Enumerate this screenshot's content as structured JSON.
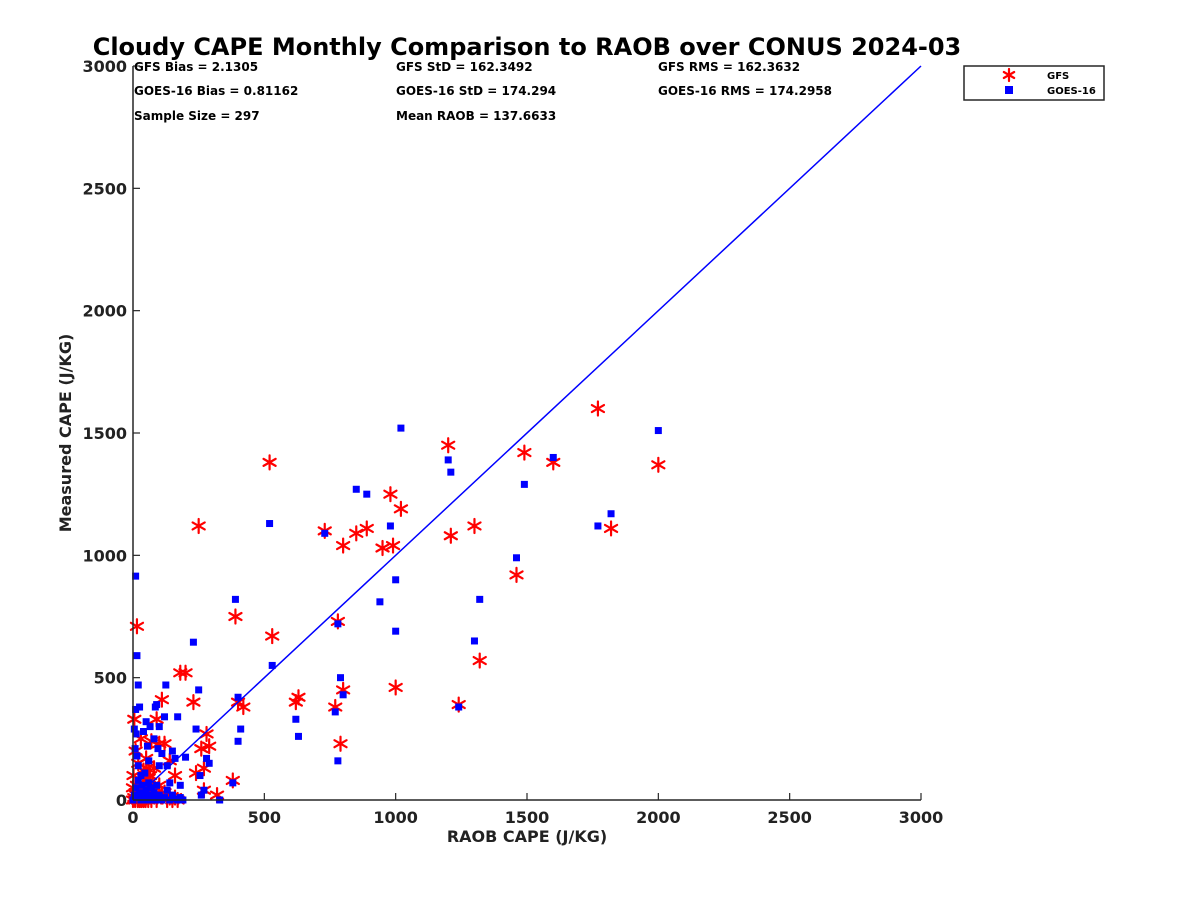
{
  "chart_data": {
    "type": "scatter",
    "title": "Cloudy CAPE Monthly Comparison to RAOB over CONUS 2024-03",
    "xlabel": "RAOB CAPE (J/KG)",
    "ylabel": "Measured CAPE (J/KG)",
    "xlim": [
      0,
      3000
    ],
    "ylim": [
      0,
      3000
    ],
    "xticks": [
      "0",
      "500",
      "1000",
      "1500",
      "2000",
      "2500",
      "3000"
    ],
    "yticks": [
      "0",
      "500",
      "1000",
      "1500",
      "2000",
      "2500",
      "3000"
    ],
    "grid": false,
    "legend_position": "top-right, outside plot",
    "stats": [
      "GFS Bias = 2.1305",
      "GFS StD = 162.3492",
      "GFS RMS = 162.3632",
      "GOES-16 Bias = 0.81162",
      "GOES-16 StD = 174.294",
      "GOES-16 RMS = 174.2958",
      "Sample Size = 297",
      "Mean RAOB = 137.6633"
    ],
    "reference_line": {
      "x": [
        0,
        3000
      ],
      "y": [
        0,
        3000
      ],
      "color": "#0000ff"
    },
    "series": [
      {
        "name": "GFS",
        "marker": "asterisk",
        "color": "#ff0000",
        "points": [
          [
            15,
            710
          ],
          [
            5,
            330
          ],
          [
            10,
            200
          ],
          [
            20,
            150
          ],
          [
            30,
            250
          ],
          [
            40,
            120
          ],
          [
            50,
            170
          ],
          [
            60,
            90
          ],
          [
            70,
            240
          ],
          [
            80,
            130
          ],
          [
            90,
            330
          ],
          [
            100,
            230
          ],
          [
            110,
            410
          ],
          [
            120,
            230
          ],
          [
            140,
            160
          ],
          [
            160,
            100
          ],
          [
            180,
            520
          ],
          [
            200,
            520
          ],
          [
            230,
            400
          ],
          [
            240,
            110
          ],
          [
            250,
            1120
          ],
          [
            260,
            210
          ],
          [
            270,
            130
          ],
          [
            280,
            270
          ],
          [
            290,
            220
          ],
          [
            270,
            40
          ],
          [
            320,
            20
          ],
          [
            380,
            80
          ],
          [
            390,
            750
          ],
          [
            400,
            400
          ],
          [
            420,
            380
          ],
          [
            520,
            1380
          ],
          [
            530,
            670
          ],
          [
            620,
            400
          ],
          [
            630,
            420
          ],
          [
            730,
            1100
          ],
          [
            770,
            380
          ],
          [
            780,
            730
          ],
          [
            790,
            230
          ],
          [
            800,
            1040
          ],
          [
            800,
            450
          ],
          [
            850,
            1090
          ],
          [
            890,
            1110
          ],
          [
            950,
            1030
          ],
          [
            980,
            1250
          ],
          [
            990,
            1040
          ],
          [
            1000,
            460
          ],
          [
            1020,
            1190
          ],
          [
            1200,
            1450
          ],
          [
            1210,
            1080
          ],
          [
            1240,
            390
          ],
          [
            1300,
            1120
          ],
          [
            1320,
            570
          ],
          [
            1460,
            920
          ],
          [
            1490,
            1420
          ],
          [
            1600,
            1380
          ],
          [
            1770,
            1600
          ],
          [
            1820,
            1110
          ],
          [
            2000,
            1370
          ],
          [
            0,
            0
          ],
          [
            5,
            10
          ],
          [
            10,
            30
          ],
          [
            15,
            60
          ],
          [
            20,
            5
          ],
          [
            25,
            0
          ],
          [
            30,
            15
          ],
          [
            35,
            40
          ],
          [
            40,
            0
          ],
          [
            45,
            80
          ],
          [
            50,
            10
          ],
          [
            55,
            50
          ],
          [
            60,
            25
          ],
          [
            65,
            100
          ],
          [
            70,
            0
          ],
          [
            75,
            60
          ],
          [
            80,
            20
          ],
          [
            85,
            40
          ],
          [
            90,
            0
          ],
          [
            100,
            60
          ],
          [
            110,
            20
          ],
          [
            120,
            30
          ],
          [
            130,
            0
          ],
          [
            140,
            10
          ],
          [
            150,
            0
          ],
          [
            160,
            10
          ],
          [
            170,
            0
          ],
          [
            0,
            50
          ],
          [
            2,
            100
          ],
          [
            8,
            0
          ],
          [
            12,
            20
          ],
          [
            18,
            0
          ],
          [
            22,
            40
          ],
          [
            28,
            10
          ],
          [
            32,
            0
          ],
          [
            38,
            70
          ],
          [
            42,
            20
          ],
          [
            48,
            0
          ],
          [
            52,
            130
          ],
          [
            58,
            0
          ]
        ]
      },
      {
        "name": "GOES-16",
        "marker": "square",
        "color": "#0000ff",
        "points": [
          [
            10,
            915
          ],
          [
            15,
            590
          ],
          [
            20,
            470
          ],
          [
            10,
            370
          ],
          [
            25,
            380
          ],
          [
            5,
            290
          ],
          [
            12,
            270
          ],
          [
            8,
            210
          ],
          [
            15,
            180
          ],
          [
            20,
            140
          ],
          [
            30,
            100
          ],
          [
            40,
            280
          ],
          [
            50,
            320
          ],
          [
            55,
            220
          ],
          [
            60,
            160
          ],
          [
            65,
            300
          ],
          [
            80,
            250
          ],
          [
            85,
            380
          ],
          [
            90,
            390
          ],
          [
            100,
            300
          ],
          [
            95,
            210
          ],
          [
            100,
            140
          ],
          [
            110,
            190
          ],
          [
            120,
            340
          ],
          [
            125,
            470
          ],
          [
            130,
            140
          ],
          [
            140,
            70
          ],
          [
            150,
            200
          ],
          [
            160,
            170
          ],
          [
            170,
            340
          ],
          [
            180,
            60
          ],
          [
            200,
            175
          ],
          [
            230,
            645
          ],
          [
            240,
            290
          ],
          [
            250,
            450
          ],
          [
            255,
            100
          ],
          [
            260,
            20
          ],
          [
            270,
            40
          ],
          [
            280,
            170
          ],
          [
            290,
            150
          ],
          [
            330,
            0
          ],
          [
            380,
            70
          ],
          [
            390,
            820
          ],
          [
            400,
            240
          ],
          [
            400,
            420
          ],
          [
            410,
            290
          ],
          [
            530,
            550
          ],
          [
            520,
            1130
          ],
          [
            620,
            330
          ],
          [
            630,
            260
          ],
          [
            730,
            1090
          ],
          [
            770,
            360
          ],
          [
            780,
            720
          ],
          [
            780,
            160
          ],
          [
            790,
            500
          ],
          [
            800,
            430
          ],
          [
            850,
            1270
          ],
          [
            890,
            1250
          ],
          [
            940,
            810
          ],
          [
            980,
            1120
          ],
          [
            1000,
            900
          ],
          [
            1000,
            690
          ],
          [
            1020,
            1520
          ],
          [
            1200,
            1390
          ],
          [
            1210,
            1340
          ],
          [
            1240,
            380
          ],
          [
            1300,
            650
          ],
          [
            1320,
            820
          ],
          [
            1460,
            990
          ],
          [
            1490,
            1290
          ],
          [
            1600,
            1400
          ],
          [
            1770,
            1120
          ],
          [
            1820,
            1170
          ],
          [
            2000,
            1510
          ],
          [
            0,
            0
          ],
          [
            5,
            20
          ],
          [
            10,
            50
          ],
          [
            15,
            10
          ],
          [
            20,
            80
          ],
          [
            25,
            30
          ],
          [
            30,
            0
          ],
          [
            35,
            60
          ],
          [
            40,
            20
          ],
          [
            45,
            110
          ],
          [
            50,
            40
          ],
          [
            55,
            0
          ],
          [
            60,
            70
          ],
          [
            65,
            20
          ],
          [
            70,
            50
          ],
          [
            75,
            0
          ],
          [
            80,
            30
          ],
          [
            85,
            10
          ],
          [
            90,
            60
          ],
          [
            95,
            0
          ],
          [
            100,
            20
          ],
          [
            110,
            0
          ],
          [
            120,
            10
          ],
          [
            130,
            40
          ],
          [
            140,
            0
          ],
          [
            150,
            20
          ],
          [
            160,
            5
          ],
          [
            170,
            0
          ],
          [
            180,
            10
          ],
          [
            190,
            0
          ]
        ]
      }
    ]
  }
}
